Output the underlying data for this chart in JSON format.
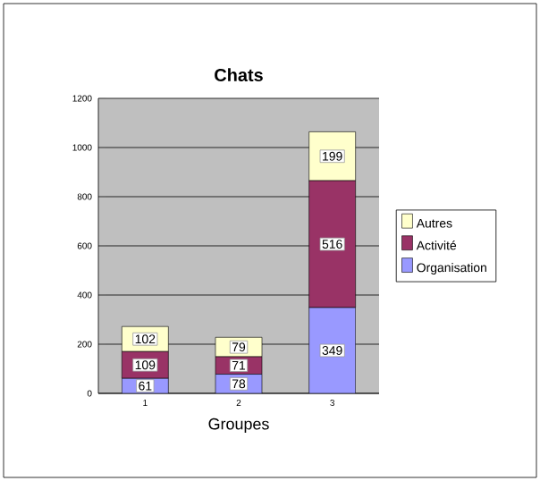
{
  "chart_data": {
    "type": "bar",
    "title": "Chats",
    "xlabel": "Groupes",
    "categories": [
      "1",
      "2",
      "3"
    ],
    "stacked": true,
    "data_labels": true,
    "legend": "right",
    "grid": "y",
    "ylim": [
      0,
      1200
    ],
    "yticks": [
      0,
      200,
      400,
      600,
      800,
      1000,
      1200
    ],
    "series": [
      {
        "name": "Organisation",
        "color": "#9999ff",
        "values": [
          61,
          78,
          349
        ]
      },
      {
        "name": "Activité",
        "color": "#993366",
        "values": [
          109,
          71,
          516
        ]
      },
      {
        "name": "Autres",
        "color": "#ffffcc",
        "values": [
          102,
          79,
          199
        ]
      }
    ]
  }
}
